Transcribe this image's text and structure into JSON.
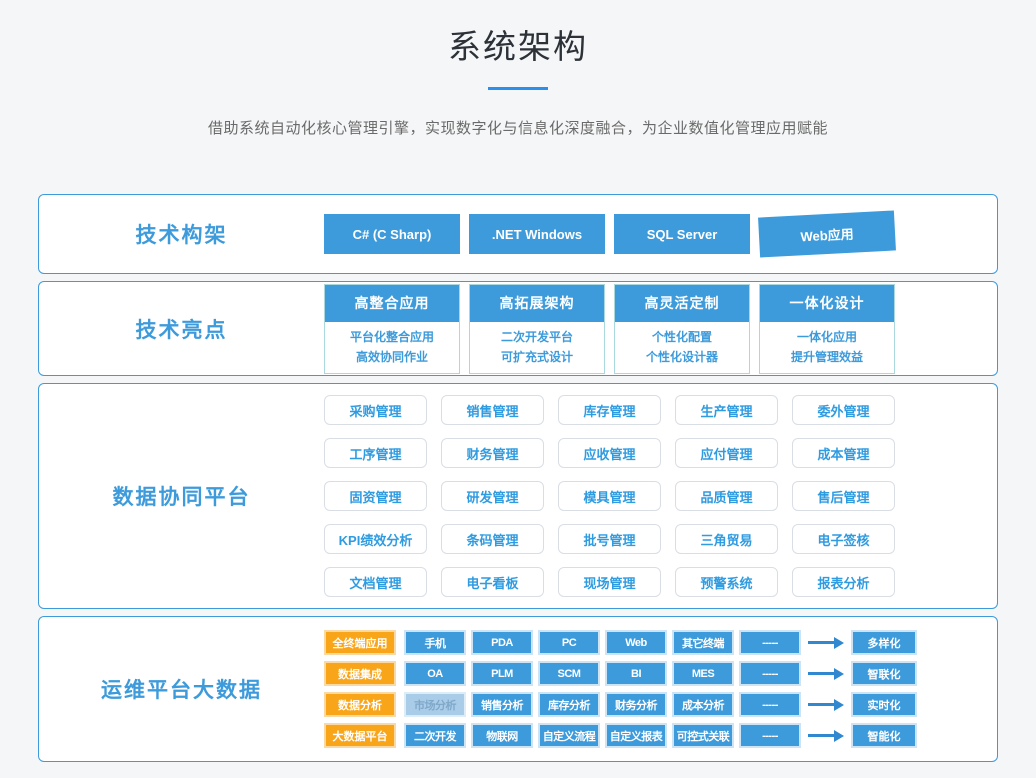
{
  "page": {
    "title": "系统架构",
    "subtitle": "借助系统自动化核心管理引擎，实现数字化与信息化深度融合，为企业数值化管理应用赋能"
  },
  "colors": {
    "accent_blue": "#3d9bdb",
    "underline_blue": "#2b8ff0",
    "orange": "#f9a51a",
    "arrow_blue": "#2f88d0",
    "outline_text_blue": "#2f9be0"
  },
  "sections": [
    {
      "label": "技术构架",
      "buttons": [
        "C#  (C Sharp)",
        ".NET Windows",
        "SQL Server",
        "Web应用"
      ]
    },
    {
      "label": "技术亮点",
      "cards": [
        {
          "header": "高整合应用",
          "lines": [
            "平台化整合应用",
            "高效协同作业"
          ]
        },
        {
          "header": "高拓展架构",
          "lines": [
            "二次开发平台",
            "可扩充式设计"
          ]
        },
        {
          "header": "高灵活定制",
          "lines": [
            "个性化配置",
            "个性化设计器"
          ]
        },
        {
          "header": "一体化设计",
          "lines": [
            "一体化应用",
            "提升管理效益"
          ]
        }
      ]
    },
    {
      "label": "数据协同平台",
      "grid": [
        [
          "采购管理",
          "销售管理",
          "库存管理",
          "生产管理",
          "委外管理"
        ],
        [
          "工序管理",
          "财务管理",
          "应收管理",
          "应付管理",
          "成本管理"
        ],
        [
          "固资管理",
          "研发管理",
          "模具管理",
          "品质管理",
          "售后管理"
        ],
        [
          "KPI绩效分析",
          "条码管理",
          "批号管理",
          "三角贸易",
          "电子签核"
        ],
        [
          "文档管理",
          "电子看板",
          "现场管理",
          "预警系统",
          "报表分析"
        ]
      ]
    },
    {
      "label": "运维平台大数据",
      "rows": [
        {
          "category": "全终端应用",
          "items": [
            "手机",
            "PDA",
            "PC",
            "Web",
            "其它终端",
            "-----"
          ],
          "result": "多样化"
        },
        {
          "category": "数据集成",
          "items": [
            "OA",
            "PLM",
            "SCM",
            "BI",
            "MES",
            "-----"
          ],
          "result": "智联化"
        },
        {
          "category": "数据分析",
          "items": [
            "市场分析",
            "销售分析",
            "库存分析",
            "财务分析",
            "成本分析",
            "-----"
          ],
          "result": "实时化",
          "faded_index": 0
        },
        {
          "category": "大数据平台",
          "items": [
            "二次开发",
            "物联网",
            "自定义流程",
            "自定义报表",
            "可控式关联",
            "-----"
          ],
          "result": "智能化"
        }
      ]
    }
  ]
}
